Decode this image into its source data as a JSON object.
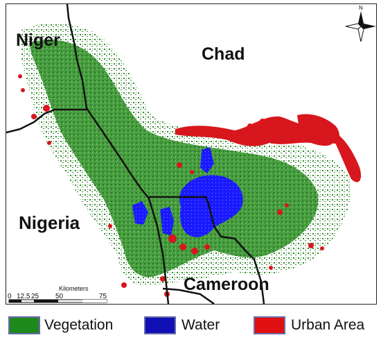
{
  "map": {
    "countries": {
      "niger": "Niger",
      "chad": "Chad",
      "nigeria": "Nigeria",
      "cameroon": "Cameroon"
    },
    "north_arrow": "N",
    "scale_bar": {
      "title": "Kilometers",
      "ticks": [
        "0",
        "12.5",
        "25",
        "50",
        "75"
      ]
    }
  },
  "legend": {
    "items": [
      {
        "label": "Vegetation",
        "color": "#1e8a1e"
      },
      {
        "label": "Water",
        "color": "#1010b4"
      },
      {
        "label": "Urban Area",
        "color": "#e01010"
      }
    ]
  },
  "colors": {
    "vegetation": "#2f8a2a",
    "water": "#1a1aff",
    "urban": "#d8161e",
    "boundary": "#111111"
  }
}
